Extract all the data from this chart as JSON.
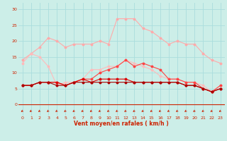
{
  "x": [
    0,
    1,
    2,
    3,
    4,
    5,
    6,
    7,
    8,
    9,
    10,
    11,
    12,
    13,
    14,
    15,
    16,
    17,
    18,
    19,
    20,
    21,
    22,
    23
  ],
  "line_rafales_max": [
    14,
    16,
    18,
    21,
    20,
    18,
    19,
    19,
    19,
    20,
    19,
    27,
    27,
    27,
    24,
    23,
    21,
    19,
    20,
    19,
    19,
    16,
    14,
    13
  ],
  "line_rafales_moy": [
    13,
    16,
    15,
    12,
    6,
    7,
    7,
    8,
    11,
    11,
    12,
    12,
    14,
    13,
    12,
    11,
    9,
    8,
    8,
    7,
    7,
    6,
    4,
    6
  ],
  "line_vent_max": [
    6,
    6,
    7,
    7,
    7,
    6,
    7,
    8,
    8,
    10,
    11,
    12,
    14,
    12,
    13,
    12,
    11,
    8,
    8,
    7,
    7,
    5,
    4,
    6
  ],
  "line_vent_moy": [
    6,
    6,
    7,
    7,
    7,
    6,
    7,
    8,
    7,
    8,
    8,
    8,
    8,
    7,
    7,
    7,
    7,
    7,
    7,
    6,
    6,
    5,
    4,
    5
  ],
  "line_vent_min": [
    6,
    6,
    7,
    7,
    6,
    6,
    7,
    7,
    7,
    7,
    7,
    7,
    7,
    7,
    7,
    7,
    7,
    7,
    7,
    6,
    6,
    5,
    4,
    5
  ],
  "background_color": "#cceee8",
  "grid_color": "#aadddd",
  "color_rafales_max": "#ffaaaa",
  "color_rafales_moy": "#ffbbbb",
  "color_vent_max": "#ff4444",
  "color_vent_moy": "#dd0000",
  "color_vent_min": "#aa0000",
  "axis_color": "#cc2200",
  "label_color": "#cc2200",
  "xlabel": "Vent moyen/en rafales ( km/h )",
  "ylim": [
    -3.5,
    32
  ],
  "xlim": [
    -0.5,
    23.5
  ],
  "yticks": [
    0,
    5,
    10,
    15,
    20,
    25,
    30
  ],
  "xticks": [
    0,
    1,
    2,
    3,
    4,
    5,
    6,
    7,
    8,
    9,
    10,
    11,
    12,
    13,
    14,
    15,
    16,
    17,
    18,
    19,
    20,
    21,
    22,
    23
  ]
}
